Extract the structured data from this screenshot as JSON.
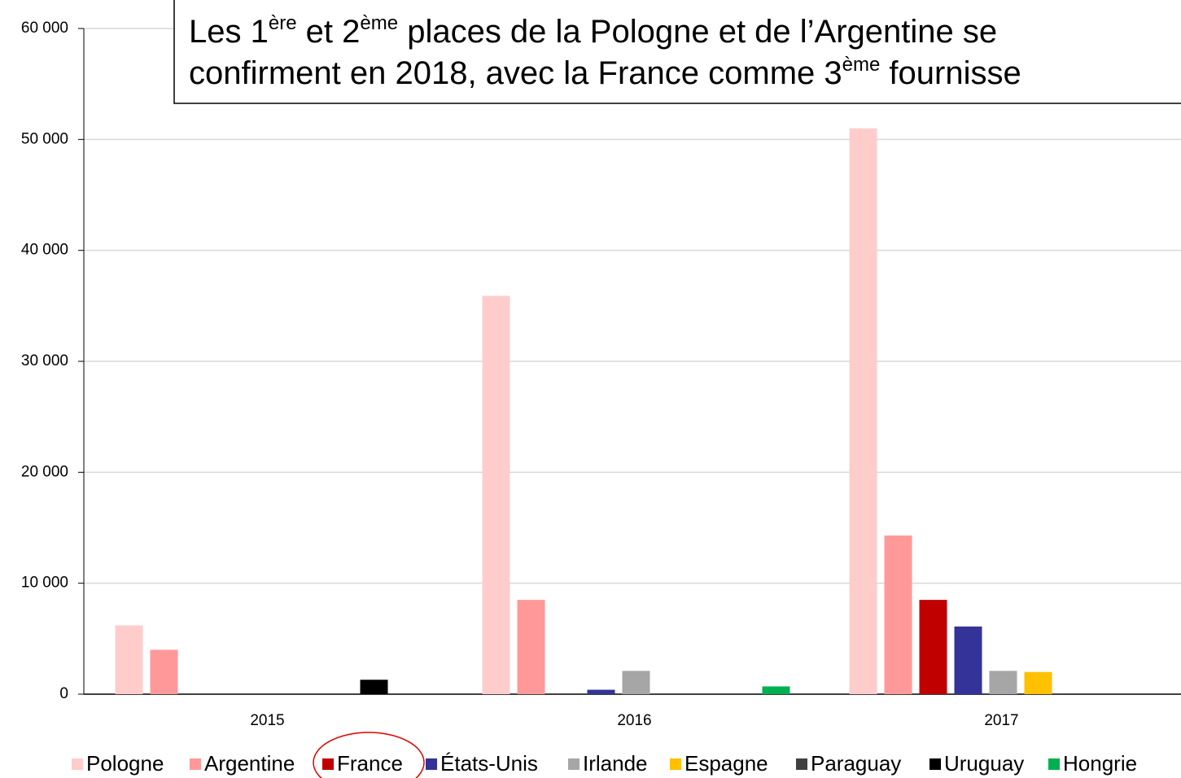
{
  "chart_data": {
    "type": "bar",
    "annotation": [
      [
        {
          "text": "Les 1"
        },
        {
          "text": "ère",
          "sup": true
        },
        {
          "text": " et 2"
        },
        {
          "text": "ème",
          "sup": true
        },
        {
          "text": " places de la Pologne et de l’Argentine se"
        }
      ],
      [
        {
          "text": "confirment en 2018, avec la France comme 3"
        },
        {
          "text": "ème",
          "sup": true
        },
        {
          "text": " fournisse"
        }
      ]
    ],
    "categories": [
      "2015",
      "2016",
      "2017"
    ],
    "series": [
      {
        "name": "Pologne",
        "color": "#ffcccc",
        "values": [
          6200,
          35900,
          51000
        ]
      },
      {
        "name": "Argentine",
        "color": "#ff9999",
        "values": [
          4000,
          8500,
          14300
        ]
      },
      {
        "name": "France",
        "color": "#c00000",
        "values": [
          0,
          0,
          8500
        ]
      },
      {
        "name": "États-Unis",
        "color": "#333399",
        "values": [
          0,
          400,
          6100
        ]
      },
      {
        "name": "Irlande",
        "color": "#a6a6a6",
        "values": [
          0,
          2100,
          2100
        ]
      },
      {
        "name": "Espagne",
        "color": "#ffc000",
        "values": [
          0,
          0,
          2000
        ]
      },
      {
        "name": "Paraguay",
        "color": "#404040",
        "values": [
          0,
          0,
          0
        ]
      },
      {
        "name": "Uruguay",
        "color": "#000000",
        "values": [
          1300,
          0,
          0
        ]
      },
      {
        "name": "Hongrie",
        "color": "#00b050",
        "values": [
          0,
          700,
          0
        ]
      }
    ],
    "ylim": [
      0,
      60000
    ],
    "yticks": [
      0,
      {
        "value": 10000,
        "label": "10 000"
      },
      {
        "value": 20000,
        "label": "20 000"
      },
      {
        "value": 30000,
        "label": "30 000"
      },
      {
        "value": 40000,
        "label": "40 000"
      },
      {
        "value": 50000,
        "label": "50 000"
      },
      {
        "value": 60000,
        "label": "60 000"
      }
    ],
    "grid": true,
    "legend": "bottom"
  }
}
